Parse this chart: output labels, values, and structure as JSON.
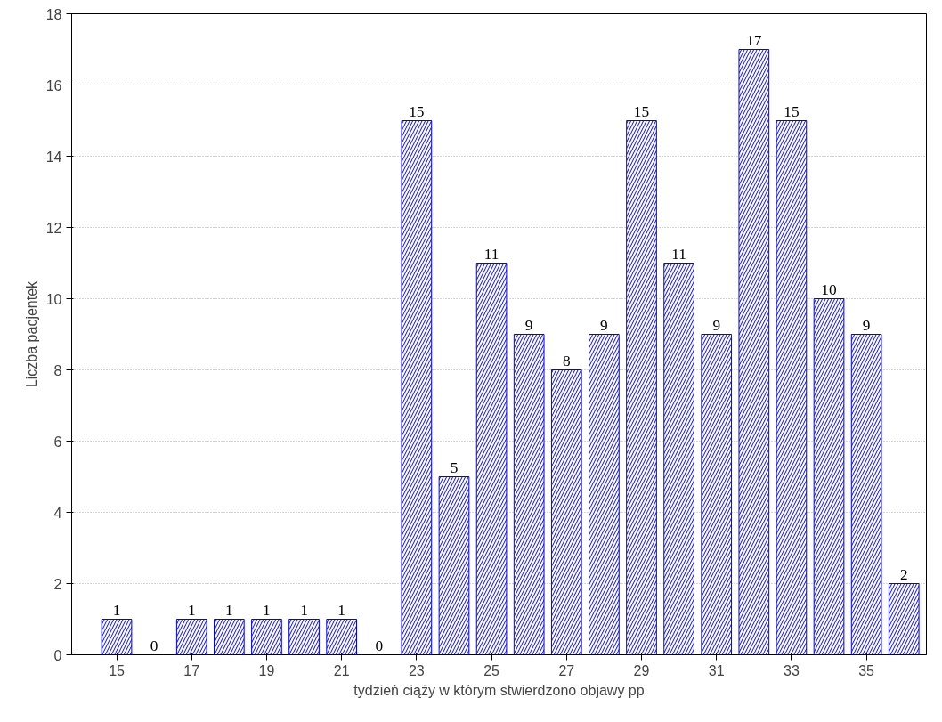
{
  "chart_data": {
    "type": "bar",
    "xlabel": "tydzień ciąży w którym stwierdzono objawy pp",
    "ylabel": "Liczba pacjentek",
    "x": [
      15,
      16,
      17,
      18,
      19,
      20,
      21,
      22,
      23,
      24,
      25,
      26,
      27,
      28,
      29,
      30,
      31,
      32,
      33,
      34,
      35,
      36
    ],
    "values": [
      1,
      0,
      1,
      1,
      1,
      1,
      1,
      0,
      15,
      5,
      11,
      9,
      8,
      9,
      15,
      11,
      9,
      17,
      15,
      10,
      9,
      2
    ],
    "color": "#0000ff",
    "data_labels": true,
    "grid": "y",
    "xlim": [
      13.8,
      36.6
    ],
    "xticks": [
      15,
      17,
      19,
      21,
      23,
      25,
      27,
      29,
      31,
      33,
      35
    ],
    "ylim": [
      0,
      18
    ],
    "yticks": [
      0,
      2,
      4,
      6,
      8,
      10,
      12,
      14,
      16,
      18
    ]
  }
}
